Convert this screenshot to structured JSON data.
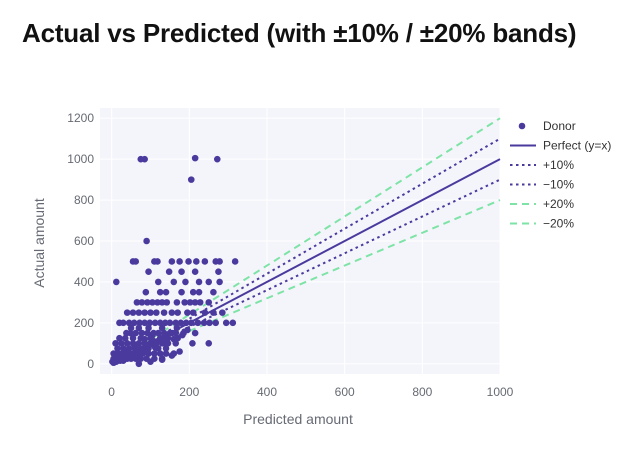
{
  "chart_data": {
    "type": "scatter",
    "title": "Actual vs Predicted (with ±10% / ±20% bands)",
    "xlabel": "Predicted amount",
    "ylabel": "Actual amount",
    "xlim": [
      -30,
      1000
    ],
    "ylim": [
      -50,
      1250
    ],
    "xticks": [
      "0",
      "200",
      "400",
      "600",
      "800",
      "1000"
    ],
    "yticks": [
      "0",
      "200",
      "400",
      "600",
      "800",
      "1000",
      "1200"
    ],
    "grid": true,
    "legend_position": "right",
    "series": [
      {
        "name": "Donor",
        "kind": "scatter",
        "color": "#4b3a9e",
        "points": [
          [
            75,
            1000
          ],
          [
            85,
            1000
          ],
          [
            215,
            1005
          ],
          [
            272,
            1000
          ],
          [
            205,
            900
          ],
          [
            90,
            600
          ],
          [
            12,
            400
          ],
          [
            55,
            500
          ],
          [
            62,
            500
          ],
          [
            110,
            500
          ],
          [
            118,
            500
          ],
          [
            155,
            500
          ],
          [
            175,
            500
          ],
          [
            198,
            500
          ],
          [
            218,
            500
          ],
          [
            240,
            500
          ],
          [
            268,
            500
          ],
          [
            278,
            500
          ],
          [
            318,
            500
          ],
          [
            95,
            450
          ],
          [
            148,
            450
          ],
          [
            180,
            450
          ],
          [
            215,
            450
          ],
          [
            275,
            450
          ],
          [
            120,
            400
          ],
          [
            160,
            400
          ],
          [
            190,
            400
          ],
          [
            225,
            400
          ],
          [
            250,
            400
          ],
          [
            278,
            400
          ],
          [
            88,
            350
          ],
          [
            125,
            350
          ],
          [
            140,
            350
          ],
          [
            180,
            350
          ],
          [
            210,
            350
          ],
          [
            225,
            350
          ],
          [
            262,
            350
          ],
          [
            65,
            300
          ],
          [
            78,
            300
          ],
          [
            92,
            300
          ],
          [
            105,
            300
          ],
          [
            118,
            300
          ],
          [
            130,
            300
          ],
          [
            142,
            300
          ],
          [
            168,
            300
          ],
          [
            188,
            300
          ],
          [
            202,
            300
          ],
          [
            215,
            300
          ],
          [
            228,
            300
          ],
          [
            250,
            300
          ],
          [
            40,
            250
          ],
          [
            55,
            250
          ],
          [
            70,
            250
          ],
          [
            85,
            250
          ],
          [
            100,
            250
          ],
          [
            115,
            250
          ],
          [
            135,
            250
          ],
          [
            155,
            250
          ],
          [
            170,
            250
          ],
          [
            195,
            250
          ],
          [
            210,
            250
          ],
          [
            240,
            250
          ],
          [
            262,
            250
          ],
          [
            285,
            250
          ],
          [
            20,
            200
          ],
          [
            30,
            200
          ],
          [
            45,
            200
          ],
          [
            58,
            200
          ],
          [
            72,
            200
          ],
          [
            85,
            200
          ],
          [
            98,
            200
          ],
          [
            112,
            200
          ],
          [
            125,
            200
          ],
          [
            138,
            200
          ],
          [
            150,
            200
          ],
          [
            165,
            200
          ],
          [
            178,
            200
          ],
          [
            192,
            200
          ],
          [
            205,
            200
          ],
          [
            222,
            200
          ],
          [
            238,
            200
          ],
          [
            252,
            200
          ],
          [
            268,
            200
          ],
          [
            295,
            200
          ],
          [
            312,
            200
          ],
          [
            50,
            175
          ],
          [
            70,
            175
          ],
          [
            95,
            175
          ],
          [
            130,
            175
          ],
          [
            168,
            175
          ],
          [
            38,
            150
          ],
          [
            48,
            150
          ],
          [
            62,
            150
          ],
          [
            78,
            150
          ],
          [
            92,
            150
          ],
          [
            108,
            150
          ],
          [
            120,
            150
          ],
          [
            135,
            150
          ],
          [
            150,
            150
          ],
          [
            165,
            150
          ],
          [
            185,
            150
          ],
          [
            215,
            150
          ],
          [
            20,
            125
          ],
          [
            35,
            125
          ],
          [
            55,
            125
          ],
          [
            75,
            125
          ],
          [
            100,
            125
          ],
          [
            125,
            125
          ],
          [
            145,
            125
          ],
          [
            170,
            125
          ],
          [
            10,
            100
          ],
          [
            25,
            100
          ],
          [
            40,
            100
          ],
          [
            55,
            100
          ],
          [
            70,
            100
          ],
          [
            85,
            100
          ],
          [
            100,
            100
          ],
          [
            115,
            100
          ],
          [
            130,
            100
          ],
          [
            145,
            100
          ],
          [
            165,
            100
          ],
          [
            208,
            100
          ],
          [
            250,
            100
          ],
          [
            15,
            75
          ],
          [
            30,
            75
          ],
          [
            45,
            75
          ],
          [
            60,
            75
          ],
          [
            75,
            75
          ],
          [
            95,
            75
          ],
          [
            120,
            75
          ],
          [
            140,
            75
          ],
          [
            5,
            50
          ],
          [
            15,
            50
          ],
          [
            25,
            50
          ],
          [
            35,
            50
          ],
          [
            45,
            50
          ],
          [
            55,
            50
          ],
          [
            65,
            50
          ],
          [
            80,
            50
          ],
          [
            95,
            50
          ],
          [
            110,
            50
          ],
          [
            125,
            50
          ],
          [
            140,
            50
          ],
          [
            160,
            50
          ],
          [
            5,
            25
          ],
          [
            12,
            25
          ],
          [
            20,
            25
          ],
          [
            30,
            25
          ],
          [
            40,
            25
          ],
          [
            50,
            25
          ],
          [
            62,
            25
          ],
          [
            75,
            25
          ],
          [
            90,
            25
          ],
          [
            110,
            25
          ],
          [
            130,
            25
          ],
          [
            2,
            10
          ],
          [
            5,
            5
          ],
          [
            8,
            15
          ],
          [
            12,
            10
          ],
          [
            18,
            20
          ],
          [
            22,
            15
          ],
          [
            28,
            20
          ],
          [
            33,
            30
          ],
          [
            38,
            30
          ],
          [
            45,
            40
          ],
          [
            52,
            45
          ],
          [
            58,
            50
          ],
          [
            65,
            60
          ],
          [
            72,
            65
          ],
          [
            80,
            70
          ],
          [
            88,
            80
          ],
          [
            95,
            90
          ],
          [
            102,
            95
          ],
          [
            110,
            105
          ],
          [
            118,
            110
          ],
          [
            126,
            120
          ],
          [
            135,
            130
          ],
          [
            144,
            140
          ],
          [
            155,
            150
          ],
          [
            25,
            40
          ],
          [
            42,
            60
          ],
          [
            60,
            80
          ],
          [
            85,
            120
          ],
          [
            105,
            140
          ],
          [
            30,
            15
          ],
          [
            48,
            30
          ],
          [
            68,
            45
          ],
          [
            90,
            60
          ],
          [
            112,
            80
          ],
          [
            138,
            100
          ],
          [
            160,
            120
          ],
          [
            182,
            140
          ],
          [
            195,
            165
          ],
          [
            70,
            0
          ],
          [
            100,
            10
          ],
          [
            130,
            20
          ],
          [
            155,
            40
          ],
          [
            175,
            60
          ]
        ]
      },
      {
        "name": "Perfect (y=x)",
        "kind": "line",
        "slope": 1.0,
        "color": "#4b3a9e",
        "dash": "solid"
      },
      {
        "name": "+10%",
        "kind": "line",
        "slope": 1.1,
        "color": "#4b3a9e",
        "dash": "dot"
      },
      {
        "name": "−10%",
        "kind": "line",
        "slope": 0.9,
        "color": "#4b3a9e",
        "dash": "dot"
      },
      {
        "name": "+20%",
        "kind": "line",
        "slope": 1.2,
        "color": "#7ee3a6",
        "dash": "dash"
      },
      {
        "name": "−20%",
        "kind": "line",
        "slope": 0.8,
        "color": "#7ee3a6",
        "dash": "dash"
      }
    ],
    "line_x_range": [
      0,
      1000
    ]
  }
}
